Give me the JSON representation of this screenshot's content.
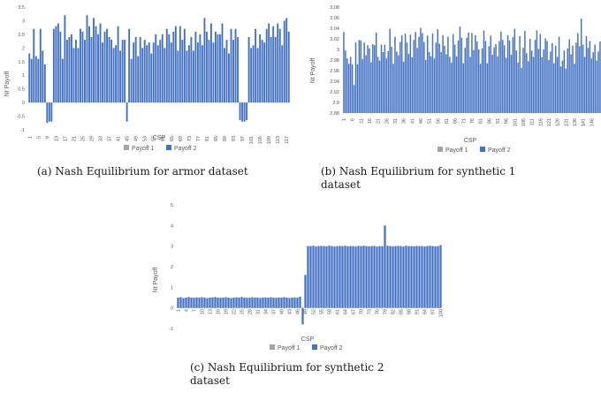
{
  "chart_data": [
    {
      "type": "bar",
      "xlabel": "CSP",
      "ylabel": "Nt Payoff",
      "ylim": [
        -1,
        3.5
      ],
      "yticks": [
        "3.5",
        "3",
        "2.5",
        "2",
        "1.5",
        "1",
        "0.5",
        "0",
        "-0.5",
        "-1"
      ],
      "grid": false,
      "legend_position": "bottom",
      "caption": "(a) Nash Equilibrium for armor dataset",
      "x_tick_labels": [
        "1",
        "5",
        "9",
        "13",
        "17",
        "21",
        "25",
        "29",
        "33",
        "37",
        "41",
        "45",
        "49",
        "53",
        "57",
        "61",
        "65",
        "69",
        "73",
        "77",
        "81",
        "85",
        "89",
        "93",
        "97",
        "101",
        "105",
        "109",
        "113",
        "117"
      ],
      "n_categories": 118,
      "series": [
        {
          "name": "Payoff 1",
          "color": "#a5a5a5",
          "values": []
        },
        {
          "name": "Payoff 2",
          "color": "#4472c4",
          "values": [
            1.8,
            1.6,
            2.7,
            1.7,
            1.6,
            2.7,
            1.9,
            1.4,
            -0.75,
            -0.7,
            -0.7,
            2.7,
            2.8,
            2.9,
            2.6,
            1.6,
            3.2,
            2.3,
            2.4,
            2.5,
            2.0,
            2.3,
            2.0,
            2.7,
            2.6,
            2.3,
            3.2,
            2.8,
            2.4,
            3.1,
            2.8,
            2.5,
            2.9,
            2.2,
            2.6,
            2.7,
            2.4,
            2.3,
            2.0,
            2.1,
            2.8,
            1.9,
            2.3,
            2.3,
            -0.7,
            2.7,
            1.6,
            2.2,
            2.4,
            1.7,
            2.4,
            2.0,
            2.3,
            2.1,
            2.2,
            1.8,
            2.2,
            2.5,
            2.1,
            2.3,
            2.5,
            2.0,
            2.7,
            2.5,
            2.2,
            2.6,
            2.8,
            1.9,
            2.8,
            2.3,
            2.7,
            1.9,
            2.1,
            2.4,
            1.9,
            2.6,
            2.2,
            2.5,
            2.1,
            3.1,
            2.6,
            2.3,
            2.9,
            2.2,
            2.6,
            2.5,
            2.5,
            2.9,
            2.0,
            2.3,
            1.8,
            2.7,
            2.3,
            2.7,
            2.4,
            -0.65,
            -0.7,
            -0.7,
            -0.65,
            2.4,
            2.0,
            2.1,
            2.7,
            2.0,
            2.5,
            2.3,
            2.2,
            2.7,
            2.9,
            2.4,
            2.8,
            2.4,
            2.9,
            2.7,
            2.1,
            3.0,
            3.1,
            2.6
          ]
        }
      ]
    },
    {
      "type": "bar",
      "xlabel": "CSP",
      "ylabel": "Nt Payoff",
      "ylim": [
        2.88,
        3.08
      ],
      "yticks": [
        "3.08",
        "3.06",
        "3.04",
        "3.02",
        "3",
        "2.98",
        "2.96",
        "2.94",
        "2.92",
        "2.9",
        "2.88"
      ],
      "grid": false,
      "legend_position": "bottom",
      "caption_line1": "(b)  Nash Equilibrium for synthetic 1",
      "caption_line2": "dataset",
      "x_tick_labels": [
        "1",
        "6",
        "11",
        "16",
        "21",
        "26",
        "31",
        "36",
        "41",
        "46",
        "51",
        "56",
        "61",
        "66",
        "71",
        "76",
        "81",
        "86",
        "91",
        "96",
        "101",
        "106",
        "111",
        "116",
        "121",
        "126",
        "131",
        "136",
        "141",
        "146"
      ],
      "n_categories": 150,
      "series": [
        {
          "name": "Payoff 1",
          "color": "#a5a5a5",
          "values": []
        },
        {
          "name": "Payoff 2",
          "color": "#4472c4",
          "values": [
            3.033,
            2.998,
            2.983,
            2.973,
            2.986,
            2.972,
            2.933,
            3.013,
            2.972,
            3.018,
            3.017,
            2.982,
            3.013,
            2.989,
            3.008,
            3.002,
            2.976,
            3.01,
            3.008,
            3.032,
            2.986,
            2.979,
            3.009,
            2.995,
            3.009,
            2.983,
            2.997,
            3.039,
            3.005,
            2.973,
            3.024,
            2.996,
            2.989,
            3.014,
            3.027,
            2.977,
            3.03,
            3.013,
            2.992,
            3.028,
            2.985,
            3.018,
            3.033,
            3.003,
            3.024,
            3.041,
            3.031,
            3.014,
            2.98,
            3.026,
            2.995,
            2.987,
            3.03,
            2.983,
            3.013,
            3.038,
            3.011,
            2.995,
            3.027,
            3.007,
            2.991,
            3.024,
            2.986,
            2.975,
            3.029,
            3.009,
            2.987,
            3.017,
            3.043,
            3.022,
            2.974,
            3.003,
            3.022,
            3.032,
            2.986,
            3.031,
            2.999,
            3.027,
            3.015,
            3.0,
            2.973,
            3.002,
            3.036,
            3.016,
            2.974,
            3.006,
            3.026,
            2.99,
            3.004,
            3.01,
            2.987,
            3.016,
            3.034,
            3.018,
            3.008,
            2.984,
            3.027,
            3.017,
            2.99,
            3.023,
            3.039,
            2.998,
            2.975,
            3.025,
            2.965,
            3.003,
            3.035,
            2.993,
            2.978,
            3.02,
            2.998,
            2.986,
            3.018,
            3.036,
            3.001,
            3.029,
            2.985,
            3.0,
            3.021,
            3.016,
            2.98,
            2.996,
            3.012,
            2.974,
            3.007,
            2.986,
            3.024,
            2.968,
            2.979,
            2.998,
            2.964,
            3.002,
            3.019,
            2.991,
            3.007,
            2.973,
            3.013,
            3.031,
            3.006,
            3.058,
            3.009,
            2.986,
            3.025,
            3.003,
            3.016,
            2.983,
            2.995,
            3.009,
            2.979,
            2.996,
            3.015,
            2.977
          ]
        }
      ]
    },
    {
      "type": "bar",
      "xlabel": "CSP",
      "ylabel": "Nt Payoff",
      "ylim": [
        -1,
        5
      ],
      "yticks": [
        "5",
        "4",
        "3",
        "2",
        "1",
        "0",
        "-1"
      ],
      "grid": false,
      "legend_position": "bottom",
      "caption_line1": "(c) Nash Equilibrium for synthetic 2",
      "caption_line2": "dataset",
      "x_tick_labels": [
        "1",
        "4",
        "7",
        "10",
        "13",
        "16",
        "19",
        "22",
        "25",
        "28",
        "31",
        "34",
        "37",
        "40",
        "43",
        "46",
        "49",
        "52",
        "55",
        "58",
        "61",
        "64",
        "67",
        "70",
        "73",
        "76",
        "79",
        "82",
        "85",
        "88",
        "91",
        "94",
        "97",
        "100"
      ],
      "n_categories": 100,
      "series": [
        {
          "name": "Payoff 1",
          "color": "#a5a5a5",
          "values": []
        },
        {
          "name": "Payoff 2",
          "color": "#4472c4",
          "values": [
            0.5,
            0.52,
            0.48,
            0.5,
            0.53,
            0.5,
            0.49,
            0.51,
            0.5,
            0.52,
            0.5,
            0.48,
            0.5,
            0.51,
            0.53,
            0.5,
            0.49,
            0.5,
            0.52,
            0.5,
            0.48,
            0.5,
            0.51,
            0.5,
            0.53,
            0.5,
            0.49,
            0.5,
            0.52,
            0.5,
            0.5,
            0.48,
            0.5,
            0.51,
            0.5,
            0.52,
            0.5,
            0.49,
            0.5,
            0.5,
            0.52,
            0.5,
            0.48,
            0.5,
            0.51,
            0.5,
            0.55,
            -0.8,
            1.6,
            3.0,
            3.0,
            3.02,
            2.98,
            3.0,
            3.01,
            3.0,
            2.99,
            3.02,
            3.0,
            2.98,
            3.0,
            3.01,
            3.0,
            3.02,
            2.99,
            3.0,
            3.0,
            2.98,
            3.01,
            3.0,
            3.02,
            3.0,
            2.99,
            3.0,
            3.01,
            2.98,
            3.0,
            3.0,
            4.0,
            3.02,
            3.0,
            2.99,
            3.0,
            3.01,
            3.0,
            2.98,
            3.02,
            3.0,
            3.0,
            2.99,
            3.01,
            3.0,
            3.0,
            2.98,
            3.0,
            3.02,
            3.0,
            2.99,
            3.0,
            3.05
          ]
        }
      ]
    }
  ]
}
